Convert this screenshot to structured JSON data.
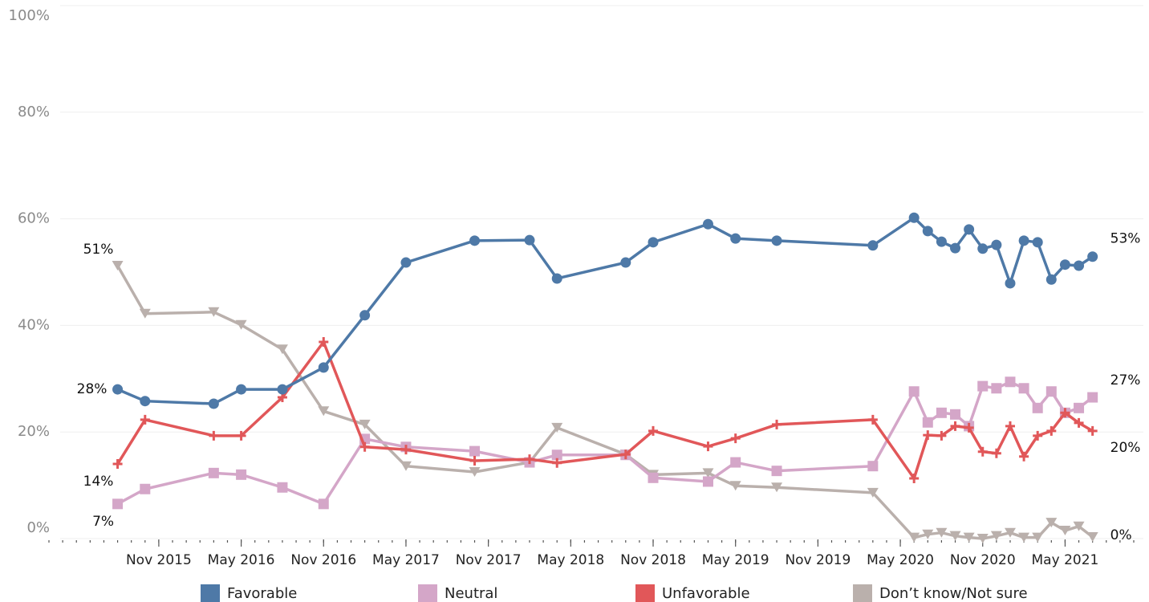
{
  "chart_data": {
    "type": "line",
    "x": [
      "2015-08",
      "2015-10",
      "2016-03",
      "2016-05",
      "2016-08",
      "2016-11",
      "2017-02",
      "2017-05",
      "2017-10",
      "2018-02",
      "2018-04",
      "2018-09",
      "2018-11",
      "2019-03",
      "2019-05",
      "2019-08",
      "2020-03",
      "2020-06",
      "2020-07",
      "2020-08",
      "2020-09",
      "2020-10",
      "2020-11",
      "2020-12",
      "2021-01",
      "2021-02",
      "2021-03",
      "2021-04",
      "2021-05",
      "2021-06",
      "2021-07"
    ],
    "series": [
      {
        "name": "Favorable",
        "color": "#4e79a7",
        "marker": "circle",
        "values": [
          28.0,
          25.8,
          25.3,
          28.0,
          28.0,
          32.1,
          41.9,
          51.8,
          55.9,
          56.0,
          48.8,
          51.8,
          55.6,
          59.0,
          56.3,
          55.9,
          55.0,
          60.2,
          57.7,
          55.7,
          54.5,
          58.0,
          54.4,
          55.1,
          47.9,
          55.9,
          55.6,
          48.6,
          51.4,
          51.2,
          52.9
        ],
        "value_labels": [
          "28%",
          null,
          null,
          null,
          null,
          null,
          null,
          null,
          null,
          null,
          null,
          null,
          null,
          null,
          null,
          null,
          null,
          null,
          null,
          null,
          null,
          null,
          null,
          null,
          null,
          null,
          null,
          null,
          null,
          null,
          "53%"
        ]
      },
      {
        "name": "Neutral",
        "color": "#d4a6c8",
        "marker": "square",
        "values": [
          6.5,
          9.3,
          12.3,
          12.0,
          9.6,
          6.5,
          18.7,
          17.2,
          16.4,
          14.3,
          15.7,
          15.7,
          11.4,
          10.7,
          14.3,
          12.7,
          13.6,
          27.6,
          21.8,
          23.6,
          23.3,
          21.1,
          28.6,
          28.2,
          29.4,
          28.2,
          24.5,
          27.6,
          23.6,
          24.5,
          26.5
        ],
        "value_labels": [
          "7%",
          null,
          null,
          null,
          null,
          null,
          null,
          null,
          null,
          null,
          null,
          null,
          null,
          null,
          null,
          null,
          null,
          null,
          null,
          null,
          null,
          null,
          null,
          null,
          null,
          null,
          null,
          null,
          null,
          null,
          "27%"
        ]
      },
      {
        "name": "Unfavorable",
        "color": "#e15759",
        "marker": "plus",
        "values": [
          14.0,
          22.3,
          19.3,
          19.3,
          26.5,
          36.9,
          17.2,
          16.7,
          14.6,
          14.9,
          14.2,
          15.8,
          20.2,
          17.3,
          18.8,
          21.4,
          22.3,
          11.3,
          19.4,
          19.3,
          21.1,
          20.8,
          16.3,
          16.0,
          21.1,
          15.4,
          19.3,
          20.2,
          23.6,
          21.7,
          20.2
        ],
        "value_labels": [
          "14%",
          null,
          null,
          null,
          null,
          null,
          null,
          null,
          null,
          null,
          null,
          null,
          null,
          null,
          null,
          null,
          null,
          null,
          null,
          null,
          null,
          null,
          null,
          null,
          null,
          null,
          null,
          null,
          null,
          null,
          "20%"
        ]
      },
      {
        "name": "Don’t know/Not sure",
        "color": "#bab0ac",
        "marker": "triangle",
        "values": [
          51.2,
          42.2,
          42.5,
          40.1,
          35.5,
          23.9,
          21.4,
          13.6,
          12.5,
          14.3,
          20.8,
          15.8,
          12.0,
          12.3,
          9.9,
          9.6,
          8.6,
          0.2,
          0.8,
          1.1,
          0.5,
          0.2,
          0.0,
          0.5,
          1.1,
          0.2,
          0.2,
          3.0,
          1.5,
          2.3,
          0.3
        ],
        "value_labels": [
          "51%",
          null,
          null,
          null,
          null,
          null,
          null,
          null,
          null,
          null,
          null,
          null,
          null,
          null,
          null,
          null,
          null,
          null,
          null,
          null,
          null,
          null,
          null,
          null,
          null,
          null,
          null,
          null,
          null,
          null,
          "0%"
        ]
      }
    ],
    "xlim": [
      "2015-03",
      "2021-10"
    ],
    "xticks": [
      {
        "value": "2015-11",
        "label": "Nov 2015"
      },
      {
        "value": "2016-05",
        "label": "May 2016"
      },
      {
        "value": "2016-11",
        "label": "Nov 2016"
      },
      {
        "value": "2017-05",
        "label": "May 2017"
      },
      {
        "value": "2017-11",
        "label": "Nov 2017"
      },
      {
        "value": "2018-05",
        "label": "May 2018"
      },
      {
        "value": "2018-11",
        "label": "Nov 2018"
      },
      {
        "value": "2019-05",
        "label": "May 2019"
      },
      {
        "value": "2019-11",
        "label": "Nov 2019"
      },
      {
        "value": "2020-05",
        "label": "May 2020"
      },
      {
        "value": "2020-11",
        "label": "Nov 2020"
      },
      {
        "value": "2021-05",
        "label": "May 2021"
      }
    ],
    "ylim": [
      0,
      100
    ],
    "yticks": [
      {
        "value": 0,
        "label": "0%"
      },
      {
        "value": 20,
        "label": "20%"
      },
      {
        "value": 40,
        "label": "40%"
      },
      {
        "value": 60,
        "label": "60%"
      },
      {
        "value": 80,
        "label": "80%"
      },
      {
        "value": 100,
        "label": "100%"
      }
    ],
    "grid": true,
    "legend": "bottom"
  }
}
